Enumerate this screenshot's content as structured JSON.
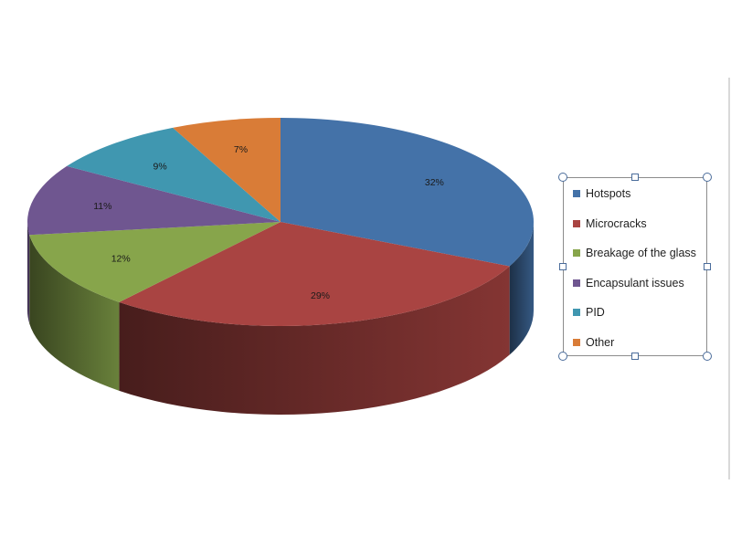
{
  "chart_data": {
    "type": "pie",
    "title": "",
    "style": "3d",
    "categories": [
      "Hotspots",
      "Microcracks",
      "Breakage of the glass",
      "Encapsulant issues",
      "PID",
      "Other"
    ],
    "values": [
      32,
      29,
      12,
      11,
      9,
      7
    ],
    "data_labels": [
      "32%",
      "29%",
      "12%",
      "11%",
      "9%",
      "7%"
    ],
    "colors": [
      "#4472a8",
      "#a94442",
      "#87a54b",
      "#6f5690",
      "#4097b0",
      "#d97c37"
    ],
    "legend_position": "right"
  }
}
